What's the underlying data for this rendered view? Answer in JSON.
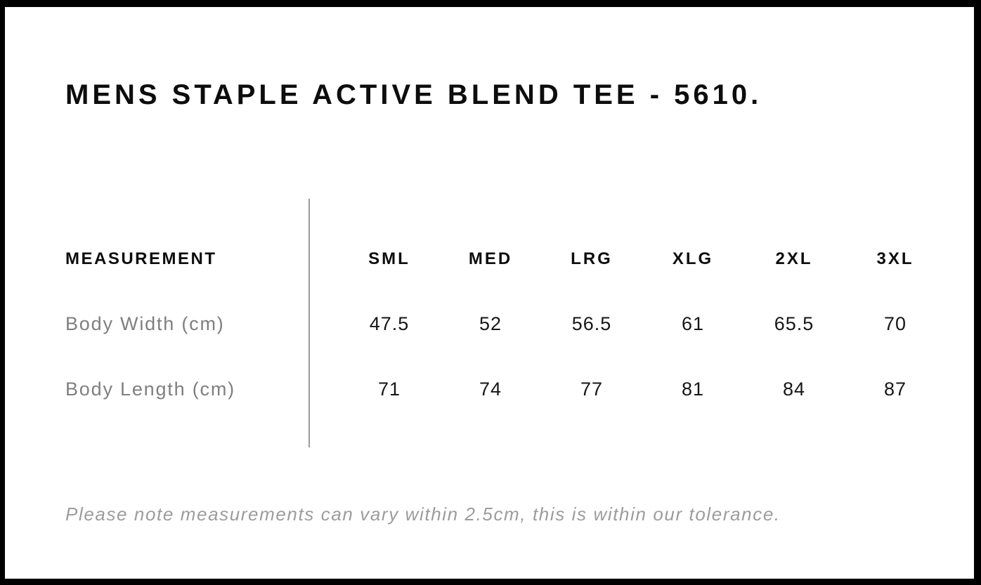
{
  "page": {
    "title": "MENS STAPLE ACTIVE BLEND TEE - 5610."
  },
  "size_chart": {
    "measurement_header": "MEASUREMENT",
    "size_headers": [
      "SML",
      "MED",
      "LRG",
      "XLG",
      "2XL",
      "3XL"
    ],
    "rows": [
      {
        "label": "Body Width (cm)",
        "values": [
          "47.5",
          "52",
          "56.5",
          "61",
          "65.5",
          "70"
        ]
      },
      {
        "label": "Body Length (cm)",
        "values": [
          "71",
          "74",
          "77",
          "81",
          "84",
          "87"
        ]
      }
    ]
  },
  "footer": {
    "note": "Please note measurements can vary within 2.5cm, this is within our tolerance."
  },
  "colors": {
    "background": "#ffffff",
    "frame_black": "#000000",
    "text_primary": "#0d0d0d",
    "label_gray": "#7f7f7f",
    "note_gray": "#9c9c9c",
    "divider_gray": "#999999"
  }
}
